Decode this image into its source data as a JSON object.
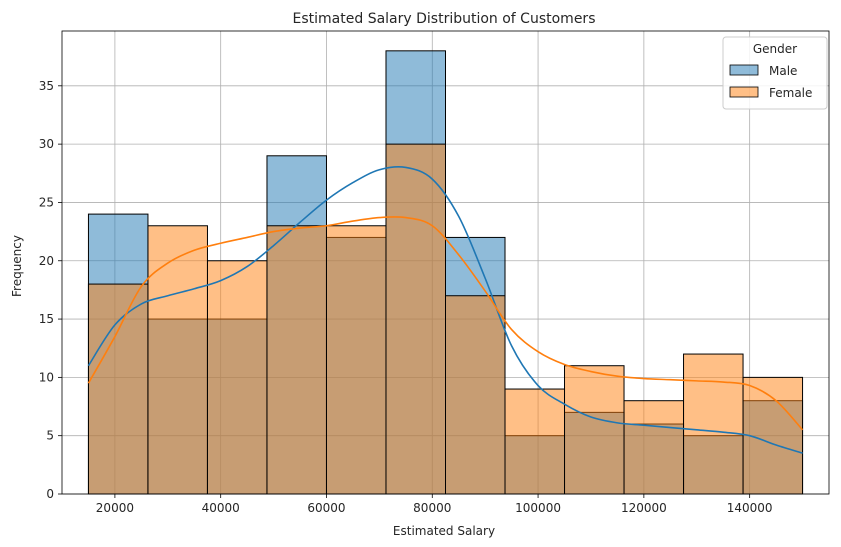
{
  "chart_data": {
    "type": "bar",
    "subtype": "histogram-with-kde",
    "title": "Estimated Salary Distribution of Customers",
    "xlabel": "Estimated Salary",
    "ylabel": "Frequency",
    "xlim": [
      10000,
      155000
    ],
    "ylim": [
      0,
      39.7
    ],
    "xticks": [
      20000,
      40000,
      60000,
      80000,
      100000,
      120000,
      140000
    ],
    "yticks": [
      0,
      5,
      10,
      15,
      20,
      25,
      30,
      35
    ],
    "grid": true,
    "bin_edges": [
      15000,
      26250,
      37500,
      48750,
      60000,
      71250,
      82500,
      93750,
      105000,
      116250,
      127500,
      138750,
      150000
    ],
    "legend": {
      "title": "Gender",
      "position": "top-right"
    },
    "series": [
      {
        "name": "Male",
        "color": "#1f77b4",
        "counts": [
          24,
          15,
          15,
          29,
          22,
          38,
          22,
          5,
          7,
          6,
          5,
          8
        ],
        "kde": {
          "x": [
            15000,
            20000,
            25000,
            30000,
            35000,
            40000,
            45000,
            50000,
            55000,
            60000,
            65000,
            70000,
            75000,
            80000,
            85000,
            90000,
            95000,
            100000,
            105000,
            110000,
            115000,
            120000,
            125000,
            130000,
            135000,
            140000,
            145000,
            150000
          ],
          "y": [
            11,
            14.5,
            16.3,
            17,
            17.6,
            18.3,
            19.5,
            21.3,
            23.3,
            25.2,
            26.7,
            27.8,
            28,
            27,
            23.8,
            18.5,
            12.7,
            9.3,
            7.7,
            6.6,
            6.1,
            5.9,
            5.7,
            5.5,
            5.3,
            5,
            4.2,
            3.5
          ]
        }
      },
      {
        "name": "Female",
        "color": "#ff7f0e",
        "counts": [
          18,
          23,
          20,
          23,
          23,
          30,
          17,
          9,
          11,
          8,
          12,
          10
        ],
        "kde": {
          "x": [
            15000,
            20000,
            25000,
            30000,
            35000,
            40000,
            45000,
            50000,
            55000,
            60000,
            65000,
            70000,
            75000,
            80000,
            85000,
            90000,
            95000,
            100000,
            105000,
            110000,
            115000,
            120000,
            125000,
            130000,
            135000,
            140000,
            145000,
            150000
          ],
          "y": [
            9.5,
            13.5,
            17.8,
            19.8,
            20.9,
            21.5,
            22,
            22.5,
            22.8,
            23,
            23.4,
            23.7,
            23.7,
            23,
            20.5,
            17.4,
            14.1,
            12.2,
            11.1,
            10.5,
            10.1,
            9.9,
            9.8,
            9.7,
            9.6,
            9.3,
            8,
            5.5
          ]
        }
      }
    ]
  }
}
